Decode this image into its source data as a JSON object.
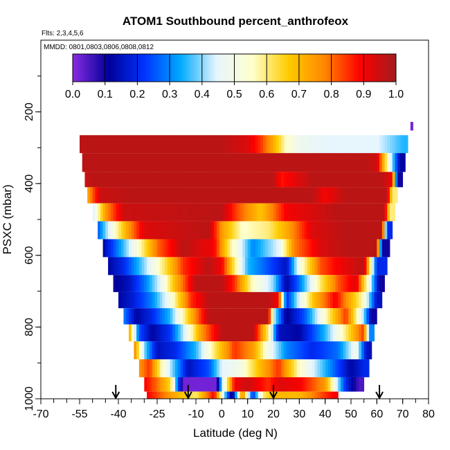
{
  "chart_data": {
    "type": "heatmap",
    "title": "ATOM1 Southbound percent_anthrofeox",
    "flights_label": "Flts: 2,3,4,5,6",
    "mmdd_label": "MMDD: 0801,0803,0806,0808,0812",
    "xlabel": "Latitude (deg N)",
    "ylabel": "PSXC (mbar)",
    "xlim": [
      -70,
      80
    ],
    "ylim": [
      1000,
      0
    ],
    "x_ticks": [
      "-70",
      "-55",
      "-40",
      "-25",
      "-10",
      "0",
      "10",
      "20",
      "30",
      "40",
      "50",
      "60",
      "70",
      "80"
    ],
    "x_tick_values": [
      -70,
      -55,
      -40,
      -25,
      -10,
      0,
      10,
      20,
      30,
      40,
      50,
      60,
      70,
      80
    ],
    "y_ticks": [
      "200",
      "400",
      "600",
      "800",
      "1000"
    ],
    "y_tick_values": [
      200,
      400,
      600,
      800,
      1000
    ],
    "colorbar": {
      "min": 0.0,
      "max": 1.0,
      "tick_labels": [
        "0.0",
        "0.1",
        "0.2",
        "0.3",
        "0.4",
        "0.5",
        "0.6",
        "0.7",
        "0.8",
        "0.9",
        "1.0"
      ],
      "stops": [
        "#8a2be2",
        "#000099",
        "#0033ff",
        "#00aaff",
        "#e6f5ff",
        "#ffffcc",
        "#ffcc00",
        "#ff8800",
        "#ff0000",
        "#a01c1c"
      ]
    },
    "profile_arrows_lat": [
      -41,
      -13,
      20,
      61
    ],
    "layers": [
      {
        "p": 285,
        "start": -55,
        "end": 72,
        "segments": [
          [
            -55,
            0.97
          ],
          [
            0,
            0.97
          ],
          [
            10,
            0.93
          ],
          [
            15,
            0.85
          ],
          [
            20,
            0.72
          ],
          [
            25,
            0.55
          ],
          [
            30,
            0.48
          ],
          [
            40,
            0.45
          ],
          [
            60,
            0.45
          ],
          [
            70,
            0.35
          ]
        ]
      },
      {
        "p": 345,
        "start": -54,
        "end": 71,
        "segments": [
          [
            -54,
            0.97
          ],
          [
            40,
            0.97
          ],
          [
            55,
            0.97
          ],
          [
            60,
            0.95
          ],
          [
            69,
            0.12
          ]
        ]
      },
      {
        "p": 390,
        "start": -53,
        "end": 70,
        "segments": [
          [
            -53,
            0.95
          ],
          [
            -50,
            0.97
          ],
          [
            20,
            0.97
          ],
          [
            23,
            0.87
          ],
          [
            26,
            0.9
          ],
          [
            35,
            0.97
          ],
          [
            50,
            0.97
          ],
          [
            62,
            0.97
          ],
          [
            66,
            0.9
          ],
          [
            68,
            0.1
          ]
        ]
      },
      {
        "p": 430,
        "start": -52,
        "end": 68,
        "segments": [
          [
            -52,
            0.72
          ],
          [
            -47,
            0.95
          ],
          [
            -35,
            0.97
          ],
          [
            35,
            0.97
          ],
          [
            40,
            0.9
          ],
          [
            48,
            0.97
          ],
          [
            64,
            0.97
          ],
          [
            66,
            0.6
          ]
        ]
      },
      {
        "p": 480,
        "start": -50,
        "end": 67,
        "segments": [
          [
            -50,
            0.42
          ],
          [
            -45,
            0.75
          ],
          [
            -38,
            0.95
          ],
          [
            0,
            0.97
          ],
          [
            5,
            0.85
          ],
          [
            15,
            0.68
          ],
          [
            25,
            0.9
          ],
          [
            45,
            0.97
          ],
          [
            63,
            0.97
          ],
          [
            65,
            0.6
          ]
        ]
      },
      {
        "p": 530,
        "start": -48,
        "end": 66,
        "segments": [
          [
            -48,
            0.25
          ],
          [
            -43,
            0.48
          ],
          [
            -36,
            0.75
          ],
          [
            -30,
            0.93
          ],
          [
            -5,
            0.97
          ],
          [
            0,
            0.75
          ],
          [
            8,
            0.55
          ],
          [
            18,
            0.6
          ],
          [
            25,
            0.72
          ],
          [
            35,
            0.93
          ],
          [
            48,
            0.97
          ],
          [
            62,
            0.97
          ],
          [
            64,
            0.2
          ]
        ]
      },
      {
        "p": 580,
        "start": -46,
        "end": 65,
        "segments": [
          [
            -46,
            0.12
          ],
          [
            -40,
            0.3
          ],
          [
            -32,
            0.55
          ],
          [
            -25,
            0.8
          ],
          [
            -15,
            0.97
          ],
          [
            -3,
            0.9
          ],
          [
            3,
            0.6
          ],
          [
            12,
            0.3
          ],
          [
            22,
            0.45
          ],
          [
            28,
            0.78
          ],
          [
            38,
            0.93
          ],
          [
            48,
            0.97
          ],
          [
            60,
            0.97
          ],
          [
            62,
            0.1
          ]
        ]
      },
      {
        "p": 630,
        "start": -44,
        "end": 64,
        "segments": [
          [
            -44,
            0.12
          ],
          [
            -38,
            0.2
          ],
          [
            -30,
            0.4
          ],
          [
            -22,
            0.62
          ],
          [
            -15,
            0.85
          ],
          [
            -5,
            0.97
          ],
          [
            0,
            0.9
          ],
          [
            5,
            0.6
          ],
          [
            10,
            0.35
          ],
          [
            18,
            0.25
          ],
          [
            25,
            0.15
          ],
          [
            30,
            0.5
          ],
          [
            38,
            0.82
          ],
          [
            45,
            0.9
          ],
          [
            55,
            0.97
          ],
          [
            60,
            0.2
          ]
        ]
      },
      {
        "p": 680,
        "start": -42,
        "end": 63,
        "segments": [
          [
            -42,
            0.1
          ],
          [
            -36,
            0.15
          ],
          [
            -30,
            0.28
          ],
          [
            -24,
            0.45
          ],
          [
            -18,
            0.7
          ],
          [
            -10,
            0.97
          ],
          [
            0,
            0.97
          ],
          [
            5,
            0.85
          ],
          [
            12,
            0.55
          ],
          [
            20,
            0.4
          ],
          [
            25,
            0.12
          ],
          [
            30,
            0.28
          ],
          [
            38,
            0.6
          ],
          [
            45,
            0.82
          ],
          [
            52,
            0.93
          ],
          [
            58,
            0.4
          ],
          [
            61,
            0.1
          ]
        ]
      },
      {
        "p": 725,
        "start": -40,
        "end": 62,
        "segments": [
          [
            -40,
            0.12
          ],
          [
            -34,
            0.18
          ],
          [
            -27,
            0.3
          ],
          [
            -20,
            0.5
          ],
          [
            -12,
            0.85
          ],
          [
            -5,
            0.97
          ],
          [
            18,
            0.97
          ],
          [
            22,
            0.9
          ],
          [
            25,
            0.2
          ],
          [
            30,
            0.45
          ],
          [
            36,
            0.7
          ],
          [
            44,
            0.9
          ],
          [
            55,
            0.55
          ],
          [
            60,
            0.15
          ]
        ]
      },
      {
        "p": 770,
        "start": -38,
        "end": 60,
        "segments": [
          [
            -38,
            0.3
          ],
          [
            -33,
            0.12
          ],
          [
            -27,
            0.2
          ],
          [
            -20,
            0.35
          ],
          [
            -12,
            0.7
          ],
          [
            -5,
            0.97
          ],
          [
            18,
            0.97
          ],
          [
            20,
            0.45
          ],
          [
            25,
            0.1
          ],
          [
            32,
            0.25
          ],
          [
            40,
            0.55
          ],
          [
            48,
            0.85
          ],
          [
            55,
            0.4
          ],
          [
            58,
            0.1
          ]
        ]
      },
      {
        "p": 815,
        "start": -36,
        "end": 59,
        "segments": [
          [
            -36,
            0.75
          ],
          [
            -32,
            0.25
          ],
          [
            -27,
            0.12
          ],
          [
            -20,
            0.22
          ],
          [
            -13,
            0.5
          ],
          [
            -8,
            0.75
          ],
          [
            0,
            0.97
          ],
          [
            12,
            0.97
          ],
          [
            18,
            0.6
          ],
          [
            22,
            0.15
          ],
          [
            30,
            0.12
          ],
          [
            40,
            0.35
          ],
          [
            48,
            0.6
          ],
          [
            55,
            0.85
          ],
          [
            57,
            0.3
          ]
        ]
      },
      {
        "p": 865,
        "start": -34,
        "end": 58,
        "segments": [
          [
            -34,
            0.8
          ],
          [
            -30,
            0.4
          ],
          [
            -25,
            0.15
          ],
          [
            -18,
            0.2
          ],
          [
            -10,
            0.35
          ],
          [
            -3,
            0.6
          ],
          [
            5,
            0.85
          ],
          [
            12,
            0.75
          ],
          [
            18,
            0.5
          ],
          [
            25,
            0.3
          ],
          [
            35,
            0.2
          ],
          [
            45,
            0.28
          ],
          [
            52,
            0.5
          ],
          [
            56,
            0.15
          ]
        ]
      },
      {
        "p": 915,
        "start": -32,
        "end": 57,
        "segments": [
          [
            -32,
            0.75
          ],
          [
            -28,
            0.85
          ],
          [
            -23,
            0.55
          ],
          [
            -18,
            0.35
          ],
          [
            -13,
            0.15
          ],
          [
            -5,
            0.25
          ],
          [
            0,
            0.45
          ],
          [
            7,
            0.5
          ],
          [
            15,
            0.7
          ],
          [
            22,
            0.85
          ],
          [
            30,
            0.55
          ],
          [
            40,
            0.35
          ],
          [
            50,
            0.12
          ],
          [
            55,
            0.2
          ]
        ]
      },
      {
        "p": 965,
        "start": -30,
        "end": 55,
        "segments": [
          [
            -30,
            0.9
          ],
          [
            -25,
            0.8
          ],
          [
            -20,
            0.65
          ],
          [
            -15,
            0.02
          ],
          [
            -2,
            0.02
          ],
          [
            0,
            0.4
          ],
          [
            5,
            0.9
          ],
          [
            10,
            0.95
          ],
          [
            18,
            0.85
          ],
          [
            22,
            0.93
          ],
          [
            30,
            0.9
          ],
          [
            40,
            0.75
          ],
          [
            48,
            0.2
          ],
          [
            53,
            0.05
          ]
        ]
      },
      {
        "p": 995,
        "start": -29,
        "end": 45,
        "segments": [
          [
            -29,
            0.9
          ],
          [
            -20,
            0.75
          ],
          [
            -10,
            0.6
          ],
          [
            -3,
            0.9
          ],
          [
            4,
            0.05
          ],
          [
            8,
            0.8
          ],
          [
            12,
            0.2
          ],
          [
            16,
            0.6
          ],
          [
            20,
            0.7
          ],
          [
            30,
            0.7
          ],
          [
            40,
            0.85
          ],
          [
            44,
            0.9
          ]
        ]
      }
    ],
    "right_edge_marks": [
      {
        "p": 240,
        "lat": 73,
        "value": 0.02
      }
    ]
  }
}
